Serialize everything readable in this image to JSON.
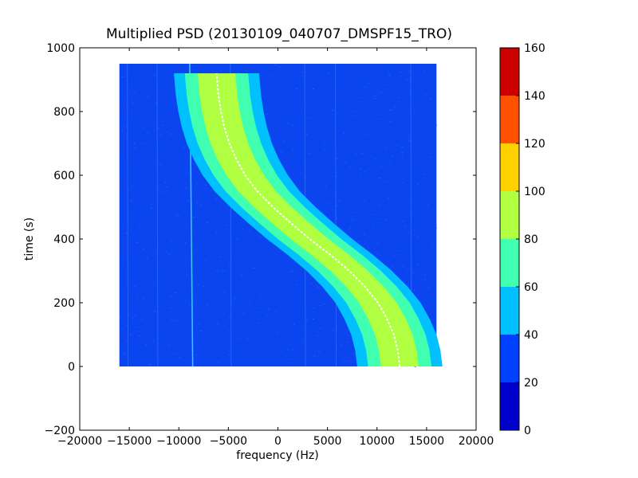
{
  "chart_data": {
    "type": "heatmap",
    "title": "Multiplied PSD (20130109_040707_DMSPF15_TRO)",
    "xlabel": "frequency (Hz)",
    "ylabel": "time (s)",
    "xlim": [
      -20000,
      20000
    ],
    "ylim": [
      -200,
      1000
    ],
    "x_ticks": [
      -20000,
      -15000,
      -10000,
      -5000,
      0,
      5000,
      10000,
      15000,
      20000
    ],
    "x_tick_labels": [
      "−20000",
      "−15000",
      "−10000",
      "−5000",
      "0",
      "5000",
      "10000",
      "15000",
      "20000"
    ],
    "y_ticks": [
      -200,
      0,
      200,
      400,
      600,
      800,
      1000
    ],
    "y_tick_labels": [
      "−200",
      "0",
      "200",
      "400",
      "600",
      "800",
      "1000"
    ],
    "data_extent": {
      "x": [
        -16000,
        16000
      ],
      "y": [
        0,
        950
      ]
    },
    "grid": false,
    "colorbar": {
      "levels": [
        0,
        20,
        40,
        60,
        80,
        100,
        120,
        140,
        160
      ],
      "tick_labels": [
        "0",
        "20",
        "40",
        "60",
        "80",
        "100",
        "120",
        "140",
        "160"
      ],
      "colors": [
        "#0000cd",
        "#0040ff",
        "#00c0ff",
        "#40ffb0",
        "#b0ff40",
        "#ffd000",
        "#ff5000",
        "#cd0000"
      ]
    },
    "background_level_color": "#0a45f0",
    "doppler_trace": {
      "description_values": "center frequency (Hz) vs time (s)",
      "time": [
        0,
        50,
        100,
        150,
        200,
        250,
        300,
        350,
        400,
        450,
        500,
        550,
        600,
        650,
        700,
        750,
        800,
        850,
        920
      ],
      "frequency": [
        12300,
        12100,
        11700,
        11000,
        10100,
        8800,
        7200,
        5300,
        3200,
        1300,
        -500,
        -2100,
        -3300,
        -4200,
        -4900,
        -5400,
        -5750,
        -6000,
        -6200
      ]
    },
    "band_layers": [
      {
        "level_color": "#00c0ff",
        "half_width_hz": 4300
      },
      {
        "level_color": "#40ffb0",
        "half_width_hz": 3200
      },
      {
        "level_color": "#b0ff40",
        "half_width_hz": 1900
      }
    ],
    "vertical_lines_hz": [
      -8900,
      -15200,
      -12200,
      -4800,
      2700,
      5800,
      13400
    ]
  }
}
